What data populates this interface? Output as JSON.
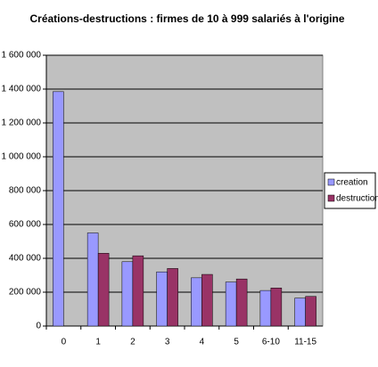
{
  "chart_data": {
    "type": "bar",
    "title": "Créations-destructions : firmes  de 10 à 999 salariés à l'origine",
    "categories": [
      "0",
      "1",
      "2",
      "3",
      "4",
      "5",
      "6-10",
      "11-15"
    ],
    "series": [
      {
        "name": "creation",
        "color": "#9999ff",
        "values": [
          1385000,
          550000,
          380000,
          320000,
          285000,
          260000,
          210000,
          165000
        ]
      },
      {
        "name": "destruction",
        "color": "#993366",
        "values": [
          null,
          430000,
          415000,
          340000,
          305000,
          278000,
          225000,
          175000
        ]
      }
    ],
    "ylim": [
      0,
      1600000
    ],
    "yticks": [
      0,
      {
        "value": 200000,
        "label": "200 000"
      },
      {
        "value": 400000,
        "label": "400 000"
      },
      {
        "value": 600000,
        "label": "600 000"
      },
      {
        "value": 800000,
        "label": "800 000"
      },
      {
        "value": 1000000,
        "label": "1 000 000"
      },
      {
        "value": 1200000,
        "label": "1 200 000"
      },
      {
        "value": 1400000,
        "label": "1 400 000"
      },
      {
        "value": 1600000,
        "label": "1 600 000"
      }
    ],
    "grid": true
  }
}
